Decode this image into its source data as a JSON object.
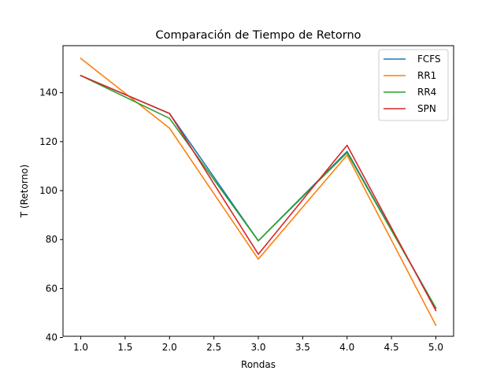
{
  "chart_data": {
    "type": "line",
    "title": "Comparación de Tiempo de Retorno",
    "xlabel": "Rondas",
    "ylabel": "T (Retorno)",
    "x": [
      1.0,
      2.0,
      3.0,
      4.0,
      5.0
    ],
    "xlim": [
      0.8,
      5.2
    ],
    "ylim": [
      40.5,
      159.2
    ],
    "xticks": [
      1.0,
      1.5,
      2.0,
      2.5,
      3.0,
      3.5,
      4.0,
      4.5,
      5.0
    ],
    "xtick_labels": [
      "1.0",
      "1.5",
      "2.0",
      "2.5",
      "3.0",
      "3.5",
      "4.0",
      "4.5",
      "5.0"
    ],
    "yticks": [
      40,
      60,
      80,
      100,
      120,
      140
    ],
    "ytick_labels": [
      "40",
      "60",
      "80",
      "100",
      "120",
      "140"
    ],
    "grid": false,
    "legend_position": "top-right",
    "series": [
      {
        "name": "FCFS",
        "color": "#1f77b4",
        "values": [
          147.0,
          131.5,
          79.5,
          116.0,
          52.0
        ]
      },
      {
        "name": "RR1",
        "color": "#ff7f0e",
        "values": [
          154.0,
          125.5,
          72.0,
          114.5,
          45.0
        ]
      },
      {
        "name": "RR4",
        "color": "#2ca02c",
        "values": [
          147.0,
          129.5,
          79.5,
          115.5,
          52.0
        ]
      },
      {
        "name": "SPN",
        "color": "#d62728",
        "values": [
          147.0,
          131.5,
          74.0,
          118.5,
          51.0
        ]
      }
    ]
  }
}
